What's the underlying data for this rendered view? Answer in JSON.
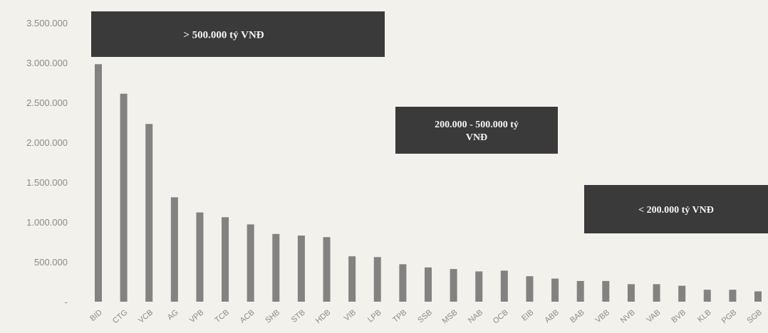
{
  "chart_data": {
    "type": "bar",
    "categories": [
      "BID",
      "CTG",
      "VCB",
      "AG",
      "VPB",
      "TCB",
      "ACB",
      "SHB",
      "STB",
      "HDB",
      "VIB",
      "LPB",
      "TPB",
      "SSB",
      "MSB",
      "NAB",
      "OCB",
      "EIB",
      "ABB",
      "BAB",
      "VBB",
      "NVB",
      "VAB",
      "BVB",
      "KLB",
      "PGB",
      "SGB"
    ],
    "values": [
      2980000,
      2610000,
      2230000,
      1310000,
      1120000,
      1060000,
      970000,
      850000,
      830000,
      810000,
      570000,
      560000,
      470000,
      430000,
      410000,
      380000,
      390000,
      320000,
      290000,
      260000,
      260000,
      220000,
      220000,
      200000,
      150000,
      150000,
      130000
    ],
    "yticks": [
      0,
      500000,
      1000000,
      1500000,
      2000000,
      2500000,
      3000000,
      3500000
    ],
    "ytick_labels": [
      "-",
      "500.000",
      "1.000.000",
      "1.500.000",
      "2.000.000",
      "2.500.000",
      "3.000.000",
      "3.500.000"
    ],
    "xtick_labels": [
      "BID",
      "CTG",
      "VCB",
      "AG",
      "VPB",
      "TCB",
      "ACB",
      "SHB",
      "STB",
      "HDB",
      "VIB",
      "LPB",
      "TPB",
      "SSB",
      "MSB",
      "NAB",
      "OCB",
      "EIB",
      "ABB",
      "BAB",
      "VBB",
      "NVB",
      "VAB",
      "BVB",
      "KLB",
      "PGB",
      "SGB"
    ],
    "ylim": [
      0,
      3500000
    ],
    "grid": false,
    "bar_color": "#6e6e6e",
    "title": "",
    "xlabel": "",
    "ylabel": "",
    "annotations": [
      {
        "lines": [
          "> 500.000 tỷ VNĐ"
        ]
      },
      {
        "lines": [
          "200.000 - 500.000 tỷ",
          "VNĐ"
        ]
      },
      {
        "lines": [
          "< 200.000 tỷ VNĐ"
        ]
      }
    ]
  }
}
